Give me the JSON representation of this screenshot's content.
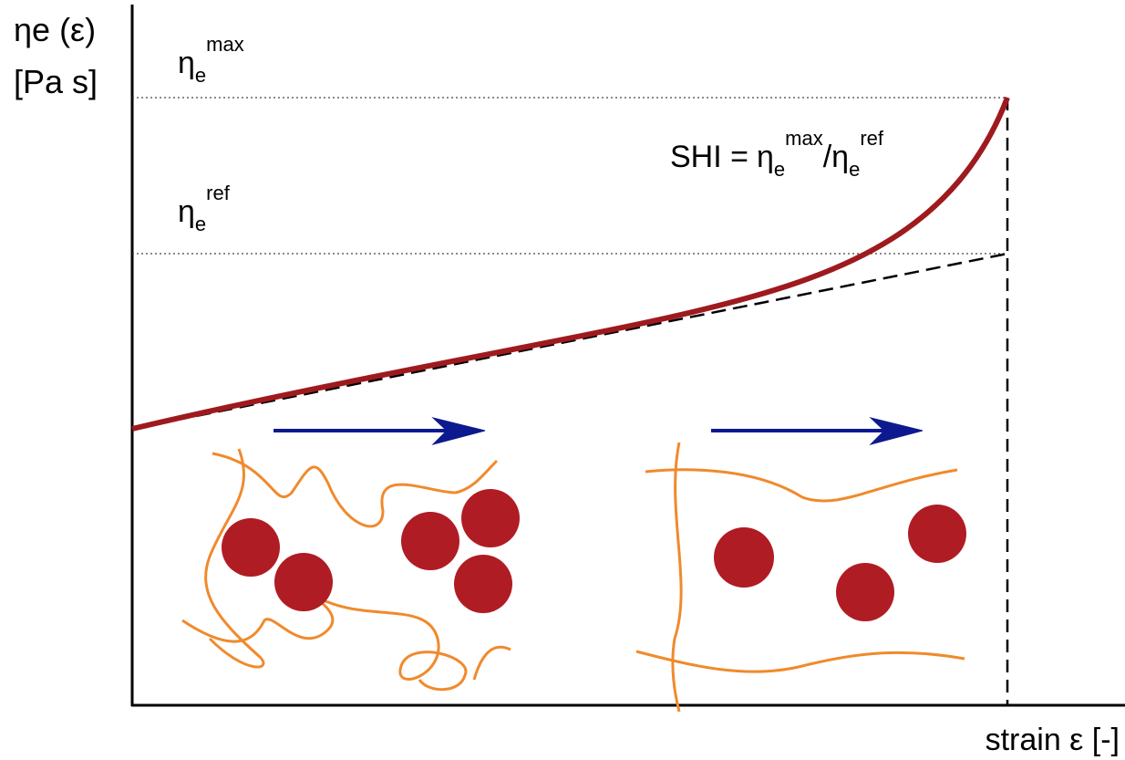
{
  "y_axis": {
    "symbol": "η",
    "sub": "e",
    "arg": "(ε)",
    "unit": "[Pa s]"
  },
  "x_axis": {
    "label": "strain ε [-]"
  },
  "levels": [
    {
      "symbol": "η",
      "sub": "e",
      "sup": "max"
    },
    {
      "symbol": "η",
      "sub": "e",
      "sup": "ref"
    }
  ],
  "formula": {
    "lhs": "SHI =",
    "num": {
      "symbol": "η",
      "sub": "e",
      "sup": "max"
    },
    "slash": "/",
    "den": {
      "symbol": "η",
      "sub": "e",
      "sup": "ref"
    }
  }
}
